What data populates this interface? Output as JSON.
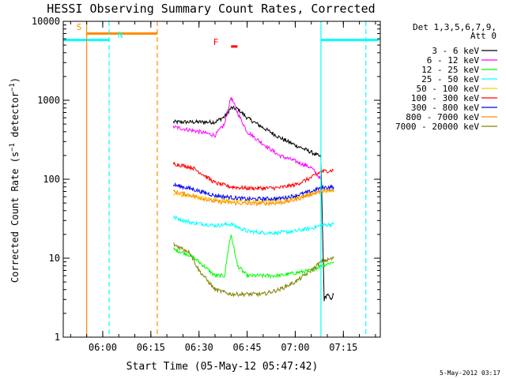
{
  "chart_data": {
    "type": "line",
    "title": "HESSI Observing Summary Count Rates, Corrected",
    "xlabel": "Start Time (05-May-12 05:47:42)",
    "ylabel": "Corrected Count Rate (s⁻¹ detector⁻¹)",
    "yscale": "log",
    "ylim": [
      1,
      10000
    ],
    "xlim": [
      "05:47:42",
      "07:26:30"
    ],
    "x_ticks": [
      {
        "t": "06:00",
        "label": "06:00"
      },
      {
        "t": "06:15",
        "label": "06:15"
      },
      {
        "t": "06:30",
        "label": "06:30"
      },
      {
        "t": "06:45",
        "label": "06:45"
      },
      {
        "t": "07:00",
        "label": "07:00"
      },
      {
        "t": "07:15",
        "label": "07:15"
      }
    ],
    "y_ticks": [
      {
        "v": 1,
        "label": "1"
      },
      {
        "v": 10,
        "label": "10"
      },
      {
        "v": 100,
        "label": "100"
      },
      {
        "v": 1000,
        "label": "1000"
      },
      {
        "v": 10000,
        "label": "10000"
      }
    ],
    "legend_title": [
      "Det 1,3,5,6,7,9,",
      "Att 0"
    ],
    "legend_placement": "right",
    "series": [
      {
        "name": "3 - 6 keV",
        "color": "#000000",
        "x": [
          "06:22",
          "06:30",
          "06:35",
          "06:38",
          "06:40",
          "06:42",
          "06:45",
          "06:50",
          "06:55",
          "07:00",
          "07:05",
          "07:08",
          "07:09",
          "07:10",
          "07:11",
          "07:12"
        ],
        "values": [
          530,
          530,
          530,
          620,
          800,
          780,
          600,
          450,
          340,
          270,
          220,
          190,
          3,
          3.5,
          3,
          3.5
        ]
      },
      {
        "name": "6 - 12 keV",
        "color": "#ff00ff",
        "x": [
          "06:22",
          "06:30",
          "06:35",
          "06:38",
          "06:40",
          "06:42",
          "06:45",
          "06:50",
          "06:55",
          "07:00",
          "07:05",
          "07:08"
        ],
        "values": [
          460,
          400,
          360,
          500,
          1100,
          700,
          400,
          280,
          200,
          170,
          140,
          100
        ]
      },
      {
        "name": "12 - 25 keV",
        "color": "#00ff00",
        "x": [
          "06:22",
          "06:27",
          "06:30",
          "06:35",
          "06:38",
          "06:39",
          "06:40",
          "06:42",
          "06:45",
          "06:50",
          "06:55",
          "07:00",
          "07:05",
          "07:08",
          "07:12"
        ],
        "values": [
          13,
          11,
          9,
          6,
          6,
          12,
          20,
          8,
          6,
          6,
          6,
          6.5,
          7,
          8,
          9
        ]
      },
      {
        "name": "25 - 50 keV",
        "color": "#00ffff",
        "x": [
          "06:22",
          "06:28",
          "06:32",
          "06:35",
          "06:40",
          "06:45",
          "06:50",
          "06:55",
          "07:00",
          "07:05",
          "07:08",
          "07:12"
        ],
        "values": [
          33,
          28,
          27,
          26,
          27,
          22,
          21,
          21,
          22,
          24,
          26,
          27
        ]
      },
      {
        "name": "50 - 100 keV",
        "color": "#ffcc00",
        "x": [
          "06:22",
          "06:28",
          "06:35",
          "06:45",
          "06:55",
          "07:00",
          "07:05",
          "07:08",
          "07:12"
        ],
        "values": [
          65,
          60,
          55,
          52,
          53,
          58,
          65,
          70,
          72
        ]
      },
      {
        "name": "100 - 300 keV",
        "color": "#ff0000",
        "x": [
          "06:22",
          "06:28",
          "06:32",
          "06:35",
          "06:40",
          "06:45",
          "06:50",
          "06:55",
          "07:00",
          "07:05",
          "07:08",
          "07:12"
        ],
        "values": [
          158,
          140,
          110,
          90,
          80,
          77,
          77,
          78,
          85,
          105,
          125,
          130
        ]
      },
      {
        "name": "300 - 800 keV",
        "color": "#0000ff",
        "x": [
          "06:22",
          "06:28",
          "06:35",
          "06:45",
          "06:55",
          "07:00",
          "07:05",
          "07:08",
          "07:12"
        ],
        "values": [
          85,
          75,
          62,
          56,
          57,
          62,
          70,
          78,
          80
        ]
      },
      {
        "name": "800 - 7000 keV",
        "color": "#ff8c00",
        "x": [
          "06:22",
          "06:28",
          "06:35",
          "06:45",
          "06:55",
          "07:00",
          "07:05",
          "07:08",
          "07:12"
        ],
        "values": [
          70,
          62,
          52,
          49,
          50,
          55,
          65,
          70,
          72
        ]
      },
      {
        "name": "7000 - 20000 keV",
        "color": "#808000",
        "x": [
          "06:22",
          "06:27",
          "06:30",
          "06:35",
          "06:40",
          "06:45",
          "06:50",
          "06:55",
          "07:00",
          "07:05",
          "07:08",
          "07:12"
        ],
        "values": [
          15,
          12,
          7,
          4,
          3.5,
          3.5,
          3.5,
          4,
          5,
          7,
          9,
          10
        ]
      }
    ],
    "markers": [
      {
        "label": "S",
        "color": "#ff8c00",
        "style": "solid",
        "x": "05:55"
      },
      {
        "label": "",
        "color": "#ff8c00",
        "style": "dashed",
        "x": "06:17"
      },
      {
        "label": "N",
        "color": "#00ffff",
        "style": "dashed",
        "x": "06:02"
      },
      {
        "label": "",
        "color": "#00ffff",
        "style": "solid",
        "x": "07:08"
      },
      {
        "label": "",
        "color": "#00ffff",
        "style": "dashed",
        "x": "07:22"
      }
    ],
    "bars": [
      {
        "label": "S",
        "color": "#ff8c00",
        "x0": "05:55",
        "x1": "06:17",
        "value": 7000
      },
      {
        "label": "",
        "color": "#00ffff",
        "x0": "05:47:42",
        "x1": "06:02",
        "value": 5800
      },
      {
        "label": "",
        "color": "#00ffff",
        "x0": "07:08",
        "x1": "07:26",
        "value": 5800
      },
      {
        "label": "F",
        "color": "#ff0000",
        "x0": "06:40",
        "x1": "06:42",
        "value": 4800
      }
    ],
    "bar_labels": [
      {
        "text": "S",
        "color": "#ff8c00"
      },
      {
        "text": "N",
        "color": "#00ffff"
      },
      {
        "text": "F",
        "color": "#ff0000"
      }
    ]
  },
  "footer": {
    "timestamp": "5-May-2012 03:17"
  }
}
